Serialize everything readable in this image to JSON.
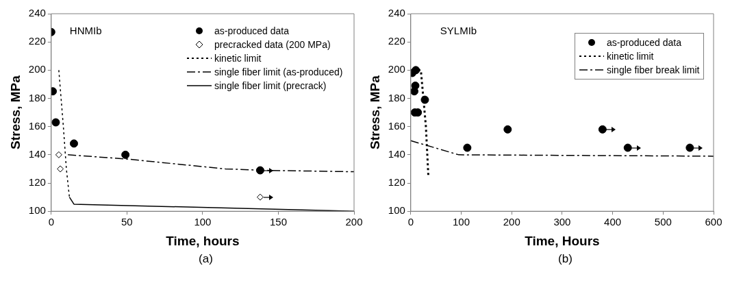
{
  "chart_data": [
    {
      "type": "scatter",
      "xlabel": "Time, hours",
      "ylabel": "Stress, MPa",
      "xlim": [
        0,
        200
      ],
      "xticks": [
        0,
        50,
        100,
        150,
        200
      ],
      "ylim": [
        100,
        240
      ],
      "yticks": [
        100,
        120,
        140,
        160,
        180,
        200,
        220,
        240
      ],
      "grid": false,
      "legend": "top right",
      "annotations": [
        "HNMIb",
        "(a)"
      ],
      "series": [
        {
          "name": "as-produced data",
          "type": "scatter",
          "marker": "circle",
          "color": "#000000",
          "x": [
            0,
            1,
            3,
            15,
            49,
            138
          ],
          "values": [
            227,
            185,
            163,
            148,
            140,
            129
          ]
        },
        {
          "name": "precracked data (200 MPa)",
          "type": "scatter",
          "marker": "diamond",
          "color": "#000000",
          "x": [
            5,
            6,
            138
          ],
          "values": [
            140,
            130,
            110
          ]
        },
        {
          "name": "kinetic limit",
          "type": "line",
          "line_style": "dotted",
          "color": "#000000",
          "x": [
            5,
            8,
            10,
            12
          ],
          "values": [
            200,
            160,
            130,
            110
          ]
        },
        {
          "name": "single fiber limit (as-produced)",
          "type": "line",
          "line_style": "dashed",
          "color": "#000000",
          "x": [
            11,
            50,
            115,
            140,
            200
          ],
          "values": [
            140,
            137,
            130,
            129,
            128
          ]
        },
        {
          "name": "single fiber limit (precrack)",
          "type": "line",
          "line_style": "solid",
          "color": "#000000",
          "x": [
            12,
            15,
            200
          ],
          "values": [
            110,
            105,
            100
          ]
        }
      ]
    },
    {
      "type": "scatter",
      "xlabel": "Time, Hours",
      "ylabel": "Stress, MPa",
      "xlim": [
        0,
        600
      ],
      "xticks": [
        0,
        100,
        200,
        300,
        400,
        500,
        600
      ],
      "ylim": [
        100,
        240
      ],
      "yticks": [
        100,
        120,
        140,
        160,
        180,
        200,
        220,
        240
      ],
      "grid": false,
      "legend": "top right",
      "annotations": [
        "SYLMIb",
        "(b)"
      ],
      "series": [
        {
          "name": "as-produced data",
          "type": "scatter",
          "marker": "circle",
          "color": "#000000",
          "x": [
            3,
            10,
            7,
            9,
            8,
            14,
            28,
            112,
            192,
            380,
            430,
            553
          ],
          "values": [
            198,
            200,
            185,
            189,
            170,
            170,
            179,
            145,
            158,
            158,
            145,
            145
          ]
        },
        {
          "name": "kinetic limit",
          "type": "line",
          "line_style": "dotted",
          "color": "#000000",
          "x": [
            15,
            20,
            25,
            30,
            35
          ],
          "values": [
            200,
            200,
            180,
            160,
            124
          ]
        },
        {
          "name": "single fiber break limit",
          "type": "line",
          "line_style": "dashed",
          "color": "#000000",
          "x": [
            0,
            95,
            600
          ],
          "values": [
            150,
            140,
            139
          ]
        }
      ]
    }
  ]
}
